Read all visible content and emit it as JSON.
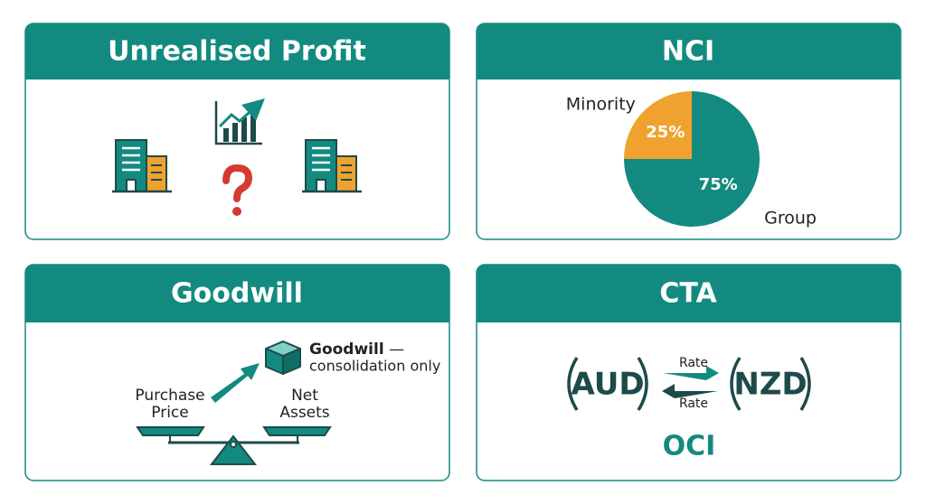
{
  "cards": [
    {
      "title": "Unrealised Profit"
    },
    {
      "title": "NCI",
      "pie": {
        "labels": [
          "Minority",
          "Group"
        ],
        "values": [
          25,
          75
        ],
        "value_labels": [
          "25%",
          "75%"
        ],
        "colors": [
          "#f0a22e",
          "#138a80"
        ]
      }
    },
    {
      "title": "Goodwill",
      "asset_label": "Goodwill",
      "asset_dash": "—",
      "asset_note": "consolidation only",
      "left_pan": [
        "Purchase",
        "Price"
      ],
      "right_pan": [
        "Net",
        "Assets"
      ]
    },
    {
      "title": "CTA",
      "from": "AUD",
      "to": "NZD",
      "rates": [
        "Rate",
        "Rate"
      ],
      "reserve": "OCI"
    }
  ]
}
